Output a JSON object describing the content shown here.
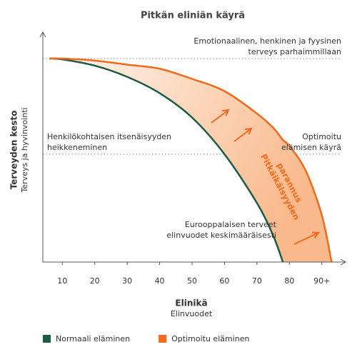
{
  "chart_data": {
    "type": "line",
    "title": "Pitkän eliniän käyrä",
    "x_label": "Elinikä",
    "x_sublabel": "Elinvuodet",
    "y_label": "Terveyden kesto",
    "y_sublabel": "Terveys ja hyvinvointi",
    "x": [
      6,
      10,
      20,
      30,
      40,
      50,
      60,
      70,
      75,
      78,
      80,
      85,
      90,
      93
    ],
    "series": [
      {
        "name": "Normaali eläminen",
        "color": "#1e5b45",
        "values": [
          100,
          99.6,
          96.5,
          91,
          83,
          71,
          53,
          29,
          13,
          0,
          null,
          null,
          null,
          null
        ]
      },
      {
        "name": "Optimoitu eläminen",
        "color": "#f26a1b",
        "values": [
          100,
          100,
          99,
          97,
          95,
          90,
          84,
          73,
          66,
          60,
          57,
          45,
          23,
          0
        ]
      }
    ],
    "xlim": [
      4,
      96
    ],
    "ylim": [
      0,
      110
    ],
    "xticks": [
      10,
      20,
      30,
      40,
      50,
      60,
      70,
      80,
      {
        "value": 90,
        "label": "90+"
      }
    ],
    "reference_lines": [
      100,
      53
    ],
    "annotations": [
      {
        "lines": [
          "Emotionaalinen, henkinen ja fyysinen",
          "terveys parhaimmillaan"
        ]
      },
      {
        "lines": [
          "Henkilökohtaisen itsenäisyyden",
          "heikkeneminen"
        ]
      },
      {
        "lines": [
          "Optimoitu",
          "elämisen käyrä"
        ]
      },
      {
        "lines": [
          "Eurooppalaisen terveet",
          "elinvuodet keskimääräisesti"
        ]
      },
      {
        "lines": [
          "Pitkäikäisyyden",
          "parannus"
        ]
      }
    ],
    "legend": "bottom-left"
  }
}
